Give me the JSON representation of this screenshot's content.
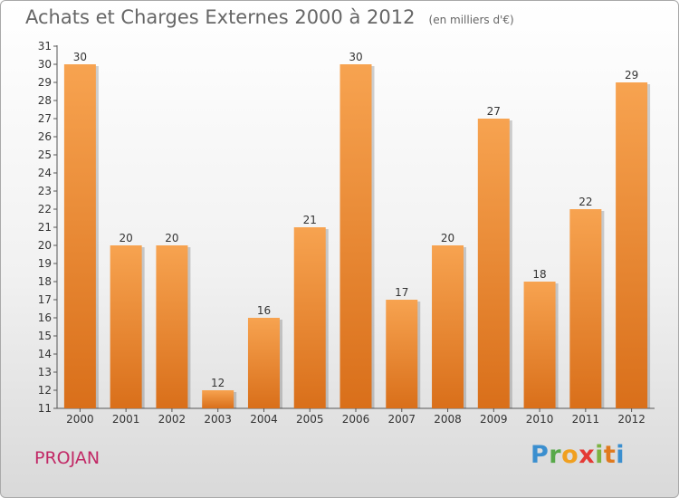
{
  "title": "Achats et Charges Externes 2000 à 2012",
  "subtitle": "(en milliers d'€)",
  "commune": "PROJAN",
  "logo_text": "Proxiti",
  "colors": {
    "bar_top": "#f7a350",
    "bar_bottom": "#d96f1a",
    "title": "#666666",
    "commune": "#c22966"
  },
  "chart_data": {
    "type": "bar",
    "title": "Achats et Charges Externes 2000 à 2012",
    "subtitle": "(en milliers d'€)",
    "xlabel": "",
    "ylabel": "",
    "categories": [
      "2000",
      "2001",
      "2002",
      "2003",
      "2004",
      "2005",
      "2006",
      "2007",
      "2008",
      "2009",
      "2010",
      "2011",
      "2012"
    ],
    "values": [
      30,
      20,
      20,
      12,
      16,
      21,
      30,
      17,
      20,
      27,
      18,
      22,
      29
    ],
    "ylim": [
      11,
      31
    ],
    "yticks": [
      11,
      12,
      13,
      14,
      15,
      16,
      17,
      18,
      19,
      20,
      21,
      22,
      23,
      24,
      25,
      26,
      27,
      28,
      29,
      30,
      31
    ],
    "grid": false,
    "data_labels": true
  }
}
